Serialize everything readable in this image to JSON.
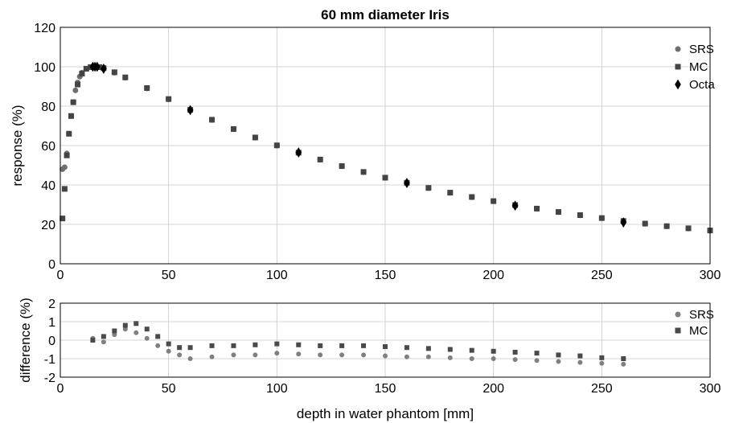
{
  "chart_data": [
    {
      "type": "scatter",
      "title": "60 mm diameter Iris",
      "xlabel": "",
      "ylabel": "response (%)",
      "xlim": [
        0,
        300
      ],
      "ylim": [
        0,
        120
      ],
      "xticks": [
        "0",
        "50",
        "100",
        "150",
        "200",
        "250",
        "300"
      ],
      "yticks": [
        "0",
        "20",
        "40",
        "60",
        "80",
        "100",
        "120"
      ],
      "grid": true,
      "legend_position": "top-right",
      "series_colors": {
        "SRS": "#6e6e6e",
        "MC": "#444444",
        "Octa": "#000000"
      },
      "series": [
        {
          "name": "SRS",
          "marker": "circle",
          "x": [
            1,
            2,
            3,
            4,
            5,
            6,
            7,
            8,
            9,
            10,
            12,
            14,
            16,
            18,
            20,
            25,
            30,
            40,
            50,
            60,
            70,
            80,
            90,
            100,
            110,
            120,
            130,
            140,
            150,
            160,
            170,
            180,
            190,
            200,
            210,
            220,
            230,
            240,
            250,
            260,
            270,
            280,
            290,
            300
          ],
          "y": [
            48,
            49,
            56,
            66,
            75,
            82,
            88,
            92,
            95,
            97,
            99,
            99.8,
            100,
            99.8,
            99.2,
            97,
            94.5,
            89,
            83.5,
            78,
            73,
            68.3,
            64,
            60,
            56.3,
            52.8,
            49.5,
            46.5,
            43.6,
            41,
            38.4,
            36,
            33.8,
            31.7,
            29.7,
            27.9,
            26.2,
            24.6,
            23.1,
            21.6,
            20.3,
            19,
            17.9,
            16.8
          ]
        },
        {
          "name": "MC",
          "marker": "square",
          "x": [
            1,
            2,
            3,
            4,
            5,
            6,
            8,
            10,
            12,
            14,
            16,
            18,
            20,
            25,
            30,
            40,
            50,
            60,
            70,
            80,
            90,
            100,
            110,
            120,
            130,
            140,
            150,
            160,
            170,
            180,
            190,
            200,
            210,
            220,
            230,
            240,
            250,
            260,
            270,
            280,
            290,
            300
          ],
          "y": [
            23,
            38,
            55,
            66,
            75,
            82,
            91,
            96.5,
            99,
            99.8,
            100,
            99.8,
            99.3,
            97.2,
            94.6,
            89.2,
            83.6,
            78.1,
            73.1,
            68.4,
            64.1,
            60.1,
            56.4,
            52.9,
            49.6,
            46.6,
            43.7,
            41.1,
            38.5,
            36.1,
            33.9,
            31.8,
            29.8,
            28,
            26.3,
            24.7,
            23.2,
            21.7,
            20.4,
            19.1,
            18,
            16.9
          ]
        },
        {
          "name": "Octa",
          "marker": "diamond",
          "x": [
            15,
            16,
            17,
            20,
            60,
            110,
            160,
            210,
            260
          ],
          "y": [
            100,
            100,
            100,
            99,
            78,
            56.5,
            41,
            29.5,
            21
          ]
        }
      ]
    },
    {
      "type": "scatter",
      "title": "",
      "xlabel": "depth in water phantom [mm]",
      "ylabel": "difference (%)",
      "xlim": [
        0,
        300
      ],
      "ylim": [
        -2,
        2
      ],
      "xticks": [
        "0",
        "50",
        "100",
        "150",
        "200",
        "250",
        "300"
      ],
      "yticks": [
        "-2",
        "-1",
        "0",
        "1",
        "2"
      ],
      "grid": true,
      "legend_position": "top-right",
      "series_colors": {
        "SRS": "#808080",
        "MC": "#4a4a4a"
      },
      "series": [
        {
          "name": "SRS",
          "marker": "circle",
          "x": [
            15,
            20,
            25,
            30,
            35,
            40,
            45,
            50,
            55,
            60,
            70,
            80,
            90,
            100,
            110,
            120,
            130,
            140,
            150,
            160,
            170,
            180,
            190,
            200,
            210,
            220,
            230,
            240,
            250,
            260
          ],
          "y": [
            0.1,
            -0.1,
            0.3,
            0.6,
            0.4,
            0.1,
            -0.3,
            -0.6,
            -0.8,
            -1.0,
            -0.9,
            -0.8,
            -0.8,
            -0.7,
            -0.75,
            -0.8,
            -0.8,
            -0.8,
            -0.85,
            -0.9,
            -0.9,
            -0.95,
            -1.0,
            -1.0,
            -1.05,
            -1.1,
            -1.15,
            -1.2,
            -1.25,
            -1.3
          ]
        },
        {
          "name": "MC",
          "marker": "square",
          "x": [
            15,
            20,
            25,
            30,
            35,
            40,
            45,
            50,
            55,
            60,
            70,
            80,
            90,
            100,
            110,
            120,
            130,
            140,
            150,
            160,
            170,
            180,
            190,
            200,
            210,
            220,
            230,
            240,
            250,
            260
          ],
          "y": [
            0.0,
            0.2,
            0.5,
            0.8,
            0.9,
            0.6,
            0.2,
            -0.2,
            -0.4,
            -0.4,
            -0.3,
            -0.3,
            -0.25,
            -0.2,
            -0.25,
            -0.3,
            -0.3,
            -0.3,
            -0.35,
            -0.4,
            -0.45,
            -0.5,
            -0.55,
            -0.6,
            -0.65,
            -0.7,
            -0.8,
            -0.85,
            -0.95,
            -1.0
          ]
        }
      ]
    }
  ]
}
